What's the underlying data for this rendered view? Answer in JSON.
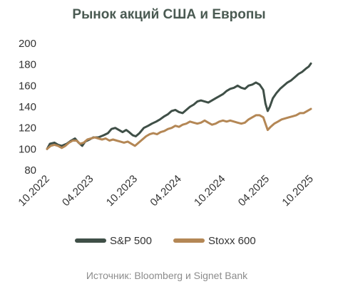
{
  "chart_data": {
    "type": "line",
    "title": "Рынок акций США и Европы",
    "source": "Источник: Bloomberg и Signet Bank",
    "xlabel": "",
    "ylabel": "",
    "ylim": [
      80,
      200
    ],
    "yticks": [
      80,
      100,
      120,
      140,
      160,
      180,
      200
    ],
    "x_ticks": [
      "10.2022",
      "04.2023",
      "10.2023",
      "04.2024",
      "10.2024",
      "04.2025",
      "10.2025"
    ],
    "x_range": [
      0,
      36
    ],
    "x_unit": "months since 10.2022",
    "grid": false,
    "legend_position": "bottom",
    "series": [
      {
        "name": "S&P 500",
        "color": "#3f4f47",
        "points": [
          [
            0,
            100
          ],
          [
            0.4,
            105
          ],
          [
            1,
            106
          ],
          [
            1.5,
            104
          ],
          [
            2,
            103
          ],
          [
            2.7,
            105
          ],
          [
            3.3,
            108
          ],
          [
            3.8,
            110
          ],
          [
            4.3,
            106
          ],
          [
            4.8,
            103
          ],
          [
            5.2,
            107
          ],
          [
            5.8,
            109
          ],
          [
            6.3,
            111
          ],
          [
            7,
            111
          ],
          [
            7.7,
            113
          ],
          [
            8.3,
            115
          ],
          [
            8.8,
            119
          ],
          [
            9.3,
            120
          ],
          [
            9.8,
            118
          ],
          [
            10.3,
            116
          ],
          [
            10.8,
            118
          ],
          [
            11.2,
            116
          ],
          [
            11.7,
            113
          ],
          [
            12.1,
            112
          ],
          [
            12.6,
            115
          ],
          [
            13.2,
            120
          ],
          [
            13.8,
            122
          ],
          [
            14.3,
            124
          ],
          [
            14.9,
            126
          ],
          [
            15.4,
            128
          ],
          [
            16,
            131
          ],
          [
            16.5,
            133
          ],
          [
            17,
            136
          ],
          [
            17.5,
            137
          ],
          [
            18,
            135
          ],
          [
            18.5,
            134
          ],
          [
            19,
            137
          ],
          [
            19.5,
            140
          ],
          [
            20,
            142
          ],
          [
            20.5,
            145
          ],
          [
            21,
            146
          ],
          [
            21.5,
            145
          ],
          [
            22,
            144
          ],
          [
            22.5,
            146
          ],
          [
            23,
            148
          ],
          [
            23.5,
            150
          ],
          [
            24,
            152
          ],
          [
            24.5,
            155
          ],
          [
            25,
            157
          ],
          [
            25.5,
            158
          ],
          [
            26,
            160
          ],
          [
            26.5,
            158
          ],
          [
            27,
            157
          ],
          [
            27.5,
            160
          ],
          [
            28,
            161
          ],
          [
            28.5,
            163
          ],
          [
            29,
            161
          ],
          [
            29.5,
            156
          ],
          [
            29.8,
            143
          ],
          [
            30.1,
            136
          ],
          [
            30.4,
            140
          ],
          [
            30.8,
            148
          ],
          [
            31.3,
            153
          ],
          [
            31.8,
            157
          ],
          [
            32.3,
            160
          ],
          [
            32.8,
            163
          ],
          [
            33.3,
            165
          ],
          [
            33.8,
            168
          ],
          [
            34.3,
            171
          ],
          [
            34.8,
            173
          ],
          [
            35.3,
            176
          ],
          [
            35.7,
            178
          ],
          [
            36,
            181
          ]
        ]
      },
      {
        "name": "Stoxx 600",
        "color": "#b48755",
        "points": [
          [
            0,
            100
          ],
          [
            0.5,
            103
          ],
          [
            1,
            104
          ],
          [
            1.5,
            103
          ],
          [
            2,
            101
          ],
          [
            2.5,
            103
          ],
          [
            3,
            106
          ],
          [
            3.5,
            108
          ],
          [
            4,
            108
          ],
          [
            4.5,
            105
          ],
          [
            5,
            106
          ],
          [
            5.5,
            109
          ],
          [
            6,
            110
          ],
          [
            6.5,
            111
          ],
          [
            7,
            110
          ],
          [
            7.5,
            109
          ],
          [
            8,
            110
          ],
          [
            8.5,
            108
          ],
          [
            9,
            109
          ],
          [
            9.5,
            108
          ],
          [
            10,
            107
          ],
          [
            10.5,
            106
          ],
          [
            11,
            107
          ],
          [
            11.5,
            105
          ],
          [
            12,
            103
          ],
          [
            12.5,
            106
          ],
          [
            13,
            109
          ],
          [
            13.5,
            112
          ],
          [
            14,
            114
          ],
          [
            14.5,
            115
          ],
          [
            15,
            114
          ],
          [
            15.5,
            116
          ],
          [
            16,
            117
          ],
          [
            16.5,
            119
          ],
          [
            17,
            120
          ],
          [
            17.5,
            122
          ],
          [
            18,
            121
          ],
          [
            18.5,
            123
          ],
          [
            19,
            124
          ],
          [
            19.5,
            126
          ],
          [
            20,
            125
          ],
          [
            20.5,
            124
          ],
          [
            21,
            125
          ],
          [
            21.5,
            127
          ],
          [
            22,
            125
          ],
          [
            22.5,
            123
          ],
          [
            23,
            124
          ],
          [
            23.5,
            126
          ],
          [
            24,
            127
          ],
          [
            24.5,
            126
          ],
          [
            25,
            127
          ],
          [
            25.5,
            126
          ],
          [
            26,
            125
          ],
          [
            26.5,
            124
          ],
          [
            27,
            125
          ],
          [
            27.5,
            128
          ],
          [
            28,
            130
          ],
          [
            28.5,
            132
          ],
          [
            29,
            132
          ],
          [
            29.5,
            130
          ],
          [
            29.8,
            124
          ],
          [
            30.1,
            118
          ],
          [
            30.5,
            121
          ],
          [
            31,
            124
          ],
          [
            31.5,
            126
          ],
          [
            32,
            128
          ],
          [
            32.5,
            129
          ],
          [
            33,
            130
          ],
          [
            33.5,
            131
          ],
          [
            34,
            132
          ],
          [
            34.5,
            134
          ],
          [
            35,
            134
          ],
          [
            35.5,
            136
          ],
          [
            36,
            138
          ]
        ]
      }
    ]
  }
}
